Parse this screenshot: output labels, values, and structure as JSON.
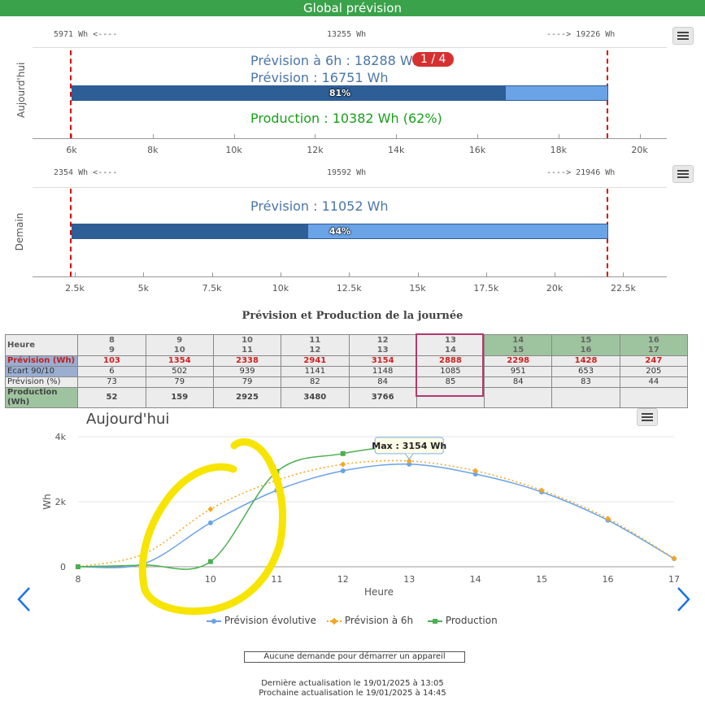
{
  "header": {
    "title": "Global prévision"
  },
  "today_panel": {
    "label": "Aujourd'hui",
    "left_text": "5971 Wh <----",
    "center_text": "13255 Wh",
    "right_text": "----> 19226 Wh",
    "prevision_6h": "Prévision à 6h : 18288 Wh",
    "badge": "1 / 4",
    "prevision": "Prévision : 16751 Wh",
    "production": "Production : 10382 Wh (62%)",
    "percent_fill": 0.81,
    "percent_label": "81%",
    "ticks": [
      "6k",
      "8k",
      "10k",
      "12k",
      "14k",
      "16k",
      "18k",
      "20k"
    ]
  },
  "tomorrow_panel": {
    "label": "Demain",
    "left_text": "2354 Wh <----",
    "center_text": "19592 Wh",
    "right_text": "----> 21946 Wh",
    "prevision": "Prévision : 11052 Wh",
    "percent_fill": 0.44,
    "percent_label": "44%",
    "ticks": [
      "2.5k",
      "5k",
      "7.5k",
      "10k",
      "12.5k",
      "15k",
      "17.5k",
      "20k",
      "22.5k"
    ]
  },
  "table": {
    "title": "Prévision et Production de la journée",
    "row_labels": [
      "Heure",
      "Prévision (Wh)",
      "Ecart 90/10",
      "Prévision (%)",
      "Production (Wh)"
    ],
    "hours_top": [
      "8",
      "9",
      "10",
      "11",
      "12",
      "13",
      "14",
      "15",
      "16"
    ],
    "hours_bottom": [
      "9",
      "10",
      "11",
      "12",
      "13",
      "14",
      "15",
      "16",
      "17"
    ],
    "prevision": [
      "103",
      "1354",
      "2338",
      "2941",
      "3154",
      "2888",
      "2298",
      "1428",
      "247"
    ],
    "ecart": [
      "6",
      "502",
      "939",
      "1141",
      "1148",
      "1085",
      "951",
      "653",
      "205"
    ],
    "prevision_pct": [
      "73",
      "79",
      "79",
      "82",
      "84",
      "85",
      "84",
      "83",
      "44"
    ],
    "production": [
      "52",
      "159",
      "2925",
      "3480",
      "3766",
      "",
      "",
      "",
      ""
    ]
  },
  "chart": {
    "title": "Aujourd'hui",
    "ylabel": "Wh",
    "xlabel": "Heure",
    "y_ticks": [
      "0",
      "2k",
      "4k"
    ],
    "x_ticks": [
      "8",
      "9",
      "10",
      "11",
      "12",
      "13",
      "14",
      "15",
      "16",
      "17"
    ],
    "tooltip": "Max : 3154 Wh",
    "legend": [
      "Prévision évolutive",
      "Prévision à 6h",
      "Production"
    ],
    "colors": {
      "evolutive": "#6aa3e6",
      "prev6h": "#f5a623",
      "production": "#4caf50",
      "annotation": "#f7e400"
    }
  },
  "chart_data": {
    "type": "line",
    "x": [
      8,
      9,
      10,
      11,
      12,
      13,
      14,
      15,
      16,
      17
    ],
    "ylim": [
      0,
      4000
    ],
    "xlabel": "Heure",
    "ylabel": "Wh",
    "series": [
      {
        "name": "Prévision évolutive",
        "values": [
          0,
          100,
          1350,
          2350,
          2950,
          3154,
          2850,
          2300,
          1430,
          250
        ]
      },
      {
        "name": "Prévision à 6h",
        "values": [
          0,
          400,
          1770,
          2660,
          3150,
          3250,
          2950,
          2350,
          1480,
          260
        ]
      },
      {
        "name": "Production",
        "x": [
          8,
          9,
          10,
          11,
          12,
          13
        ],
        "values": [
          0,
          52,
          159,
          2925,
          3480,
          3766
        ]
      }
    ]
  },
  "footer": {
    "button": "Aucune demande pour démarrer un appareil",
    "last_update": "Dernière actualisation le 19/01/2025 à 13:05",
    "next_update": "Prochaine actualisation le 19/01/2025 à 14:45"
  }
}
